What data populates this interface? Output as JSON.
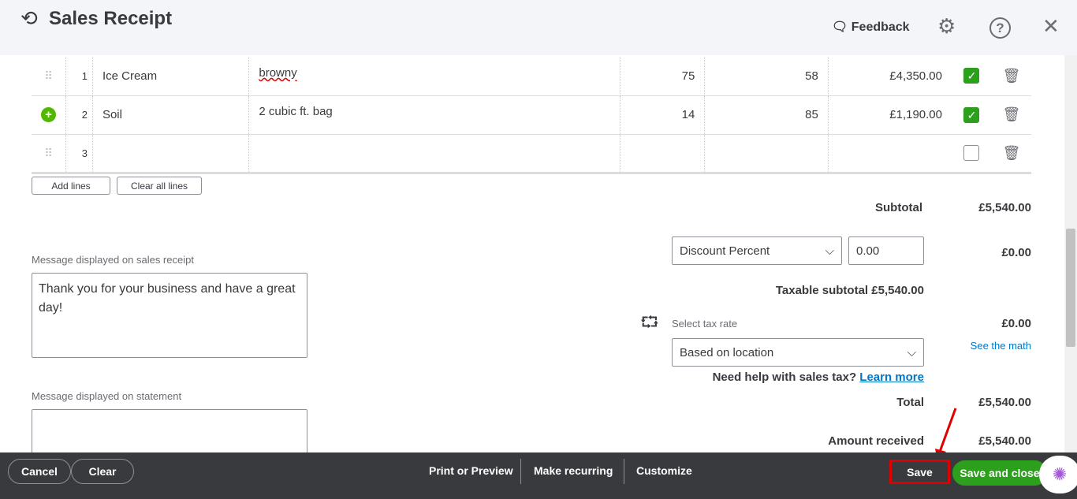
{
  "header": {
    "title": "Sales Receipt",
    "feedback": "Feedback"
  },
  "lines": [
    {
      "num": "1",
      "product": "Ice Cream",
      "description": "browny",
      "qty": "75",
      "rate": "58",
      "amount": "£4,350.00",
      "taxable": true,
      "handle": "grip"
    },
    {
      "num": "2",
      "product": "Soil",
      "description": "2 cubic ft. bag",
      "qty": "14",
      "rate": "85",
      "amount": "£1,190.00",
      "taxable": true,
      "handle": "add"
    },
    {
      "num": "3",
      "product": "",
      "description": "",
      "qty": "",
      "rate": "",
      "amount": "",
      "taxable": false,
      "handle": "grip"
    }
  ],
  "buttons": {
    "add_lines": "Add lines",
    "clear_all_lines": "Clear all lines"
  },
  "messages": {
    "receipt_label": "Message displayed on sales receipt",
    "receipt_value": "Thank you for your business and have a great day!",
    "statement_label": "Message displayed on statement",
    "statement_value": ""
  },
  "totals": {
    "subtotal_label": "Subtotal",
    "subtotal": "£5,540.00",
    "discount_type": "Discount Percent",
    "discount_value": "0.00",
    "discount_amount": "£0.00",
    "taxable_subtotal": "Taxable subtotal £5,540.00",
    "tax_rate_label": "Select tax rate",
    "tax_rate": "Based on location",
    "tax_amount": "£0.00",
    "see_math": "See the math",
    "help_text": "Need help with sales tax?",
    "learn_more": "Learn more",
    "total_label": "Total",
    "total": "£5,540.00",
    "received_label": "Amount received",
    "received": "£5,540.00"
  },
  "footer": {
    "cancel": "Cancel",
    "clear": "Clear",
    "print": "Print or Preview",
    "recurring": "Make recurring",
    "customize": "Customize",
    "save": "Save",
    "save_close": "Save and close"
  },
  "colors": {
    "green": "#2ca01c",
    "footer": "#393a3d",
    "link": "#0077c5",
    "highlight": "#e00000"
  }
}
